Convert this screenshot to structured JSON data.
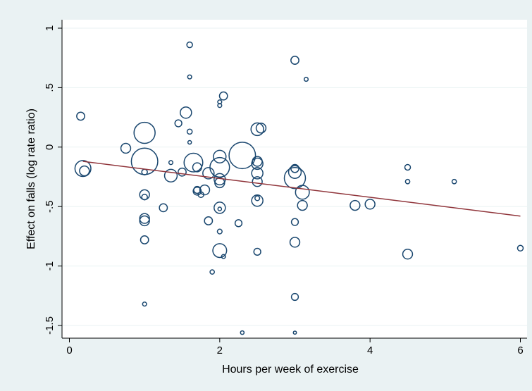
{
  "chart_data": {
    "type": "scatter",
    "xlabel": "Hours per week of exercise",
    "ylabel": "Effect on falls (log rate ratio)",
    "xlim": [
      0,
      6
    ],
    "ylim": [
      -1.5,
      1
    ],
    "x_ticks": [
      0,
      2,
      4,
      6
    ],
    "x_tick_labels": [
      "0",
      "2",
      "4",
      "6"
    ],
    "y_ticks": [
      -1.5,
      -1,
      -0.5,
      0,
      0.5,
      1
    ],
    "y_tick_labels": [
      "-1.5",
      "-1",
      "-.5",
      "0",
      ".5",
      "1"
    ],
    "grid": "horizontal",
    "legend": "none",
    "colors": {
      "marker": "#1a476f",
      "fit_line": "#90353b",
      "plot_bg": "#ffffff",
      "outer_bg": "#eaf2f3",
      "grid": "#eaf2f3"
    },
    "bubble_note": "marker size proportional to study weight",
    "points": [
      {
        "x": 0.15,
        "y": 0.26,
        "w": 2
      },
      {
        "x": 0.18,
        "y": -0.18,
        "w": 8
      },
      {
        "x": 0.2,
        "y": -0.2,
        "w": 3
      },
      {
        "x": 0.75,
        "y": -0.01,
        "w": 3
      },
      {
        "x": 1.0,
        "y": 0.12,
        "w": 14
      },
      {
        "x": 1.0,
        "y": -0.12,
        "w": 22
      },
      {
        "x": 1.0,
        "y": -0.21,
        "w": 1
      },
      {
        "x": 1.0,
        "y": -0.4,
        "w": 3
      },
      {
        "x": 1.0,
        "y": -0.42,
        "w": 1
      },
      {
        "x": 1.0,
        "y": -0.6,
        "w": 3
      },
      {
        "x": 1.0,
        "y": -0.62,
        "w": 3
      },
      {
        "x": 1.0,
        "y": -0.78,
        "w": 2
      },
      {
        "x": 1.0,
        "y": -1.32,
        "w": 0.5
      },
      {
        "x": 1.25,
        "y": -0.51,
        "w": 2
      },
      {
        "x": 1.35,
        "y": -0.13,
        "w": 0.5
      },
      {
        "x": 1.35,
        "y": -0.24,
        "w": 5
      },
      {
        "x": 1.45,
        "y": 0.2,
        "w": 1.5
      },
      {
        "x": 1.5,
        "y": -0.21,
        "w": 2
      },
      {
        "x": 1.55,
        "y": 0.29,
        "w": 4
      },
      {
        "x": 1.6,
        "y": 0.86,
        "w": 1
      },
      {
        "x": 1.6,
        "y": 0.59,
        "w": 0.5
      },
      {
        "x": 1.6,
        "y": 0.13,
        "w": 0.8
      },
      {
        "x": 1.6,
        "y": 0.04,
        "w": 0.4
      },
      {
        "x": 1.65,
        "y": -0.13,
        "w": 11
      },
      {
        "x": 1.7,
        "y": -0.17,
        "w": 2.5
      },
      {
        "x": 1.7,
        "y": -0.36,
        "w": 1.5
      },
      {
        "x": 1.7,
        "y": -0.37,
        "w": 2
      },
      {
        "x": 1.75,
        "y": -0.4,
        "w": 1
      },
      {
        "x": 1.8,
        "y": -0.36,
        "w": 3
      },
      {
        "x": 1.85,
        "y": -0.22,
        "w": 4
      },
      {
        "x": 1.85,
        "y": -0.62,
        "w": 2
      },
      {
        "x": 1.9,
        "y": -1.05,
        "w": 0.6
      },
      {
        "x": 2.0,
        "y": 0.38,
        "w": 0.5
      },
      {
        "x": 2.0,
        "y": 0.35,
        "w": 0.5
      },
      {
        "x": 2.0,
        "y": -0.08,
        "w": 5
      },
      {
        "x": 2.0,
        "y": -0.17,
        "w": 12
      },
      {
        "x": 2.0,
        "y": -0.27,
        "w": 4
      },
      {
        "x": 2.0,
        "y": -0.3,
        "w": 3
      },
      {
        "x": 2.0,
        "y": -0.51,
        "w": 4
      },
      {
        "x": 2.0,
        "y": -0.52,
        "w": 0.4
      },
      {
        "x": 2.0,
        "y": -0.71,
        "w": 0.7
      },
      {
        "x": 2.0,
        "y": -0.87,
        "w": 6
      },
      {
        "x": 2.05,
        "y": 0.43,
        "w": 2
      },
      {
        "x": 2.05,
        "y": -0.92,
        "w": 0.5
      },
      {
        "x": 2.25,
        "y": -0.64,
        "w": 1.5
      },
      {
        "x": 2.3,
        "y": -0.07,
        "w": 22
      },
      {
        "x": 2.3,
        "y": -1.56,
        "w": 0.4
      },
      {
        "x": 2.5,
        "y": 0.15,
        "w": 5
      },
      {
        "x": 2.5,
        "y": -0.12,
        "w": 3
      },
      {
        "x": 2.5,
        "y": -0.14,
        "w": 4
      },
      {
        "x": 2.5,
        "y": -0.22,
        "w": 4
      },
      {
        "x": 2.5,
        "y": -0.29,
        "w": 3
      },
      {
        "x": 2.5,
        "y": -0.43,
        "w": 0.7
      },
      {
        "x": 2.5,
        "y": -0.45,
        "w": 4
      },
      {
        "x": 2.5,
        "y": -0.88,
        "w": 1.5
      },
      {
        "x": 2.55,
        "y": 0.16,
        "w": 3
      },
      {
        "x": 3.0,
        "y": 0.73,
        "w": 2
      },
      {
        "x": 3.0,
        "y": -0.18,
        "w": 2
      },
      {
        "x": 3.0,
        "y": -0.21,
        "w": 5
      },
      {
        "x": 3.0,
        "y": -0.26,
        "w": 14
      },
      {
        "x": 3.0,
        "y": -0.63,
        "w": 1.5
      },
      {
        "x": 3.0,
        "y": -0.8,
        "w": 3
      },
      {
        "x": 3.0,
        "y": -1.26,
        "w": 1.5
      },
      {
        "x": 3.0,
        "y": -1.56,
        "w": 0.3
      },
      {
        "x": 3.1,
        "y": -0.38,
        "w": 6
      },
      {
        "x": 3.1,
        "y": -0.49,
        "w": 3
      },
      {
        "x": 3.15,
        "y": 0.57,
        "w": 0.5
      },
      {
        "x": 3.8,
        "y": -0.49,
        "w": 3
      },
      {
        "x": 4.0,
        "y": -0.48,
        "w": 3
      },
      {
        "x": 4.5,
        "y": -0.17,
        "w": 1
      },
      {
        "x": 4.5,
        "y": -0.29,
        "w": 0.6
      },
      {
        "x": 4.5,
        "y": -0.9,
        "w": 3
      },
      {
        "x": 5.12,
        "y": -0.29,
        "w": 0.6
      },
      {
        "x": 6.0,
        "y": -0.85,
        "w": 1
      }
    ],
    "fit_line": {
      "x": [
        0.18,
        6.0
      ],
      "y": [
        -0.12,
        -0.58
      ]
    }
  }
}
